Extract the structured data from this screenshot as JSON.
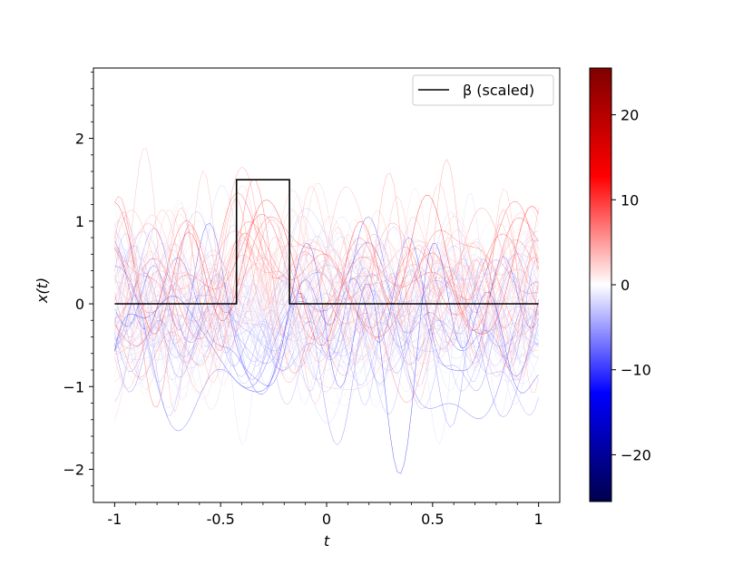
{
  "chart_data": {
    "type": "line",
    "xlabel": "t",
    "ylabel": "x(t)",
    "xlim": [
      -1.1,
      1.1
    ],
    "ylim": [
      -2.4,
      2.85
    ],
    "x_ticks": [
      -1,
      -0.5,
      0,
      0.5,
      1
    ],
    "x_tick_labels": [
      "-1",
      "-0.5",
      "0",
      "0.5",
      "1"
    ],
    "y_ticks": [
      -2,
      -1,
      0,
      1,
      2
    ],
    "y_tick_labels": [
      "−2",
      "−1",
      "0",
      "1",
      "2"
    ],
    "grid": false,
    "legend": {
      "placement": "top-right",
      "entries": [
        "β (scaled)"
      ]
    },
    "series": [
      {
        "name": "β (scaled)",
        "color": "#000000",
        "x": [
          -1,
          -0.425,
          -0.425,
          -0.175,
          -0.175,
          1
        ],
        "y": [
          0,
          0,
          1.5,
          1.5,
          0,
          0
        ]
      }
    ],
    "curves": {
      "count": 100,
      "x_range": [
        -1,
        1
      ],
      "y_spread": [
        -2.15,
        2.0
      ],
      "colormap": "seismic",
      "color_by": "response value"
    },
    "colorbar": {
      "range": [
        -25.5,
        25.5
      ],
      "ticks": [
        20,
        10,
        0,
        -10,
        -20
      ],
      "tick_labels": [
        "20",
        "10",
        "0",
        "−10",
        "−20"
      ],
      "colors": [
        "#7f0000",
        "#ff0000",
        "#ffffff",
        "#0000ff",
        "#00004c"
      ]
    }
  }
}
